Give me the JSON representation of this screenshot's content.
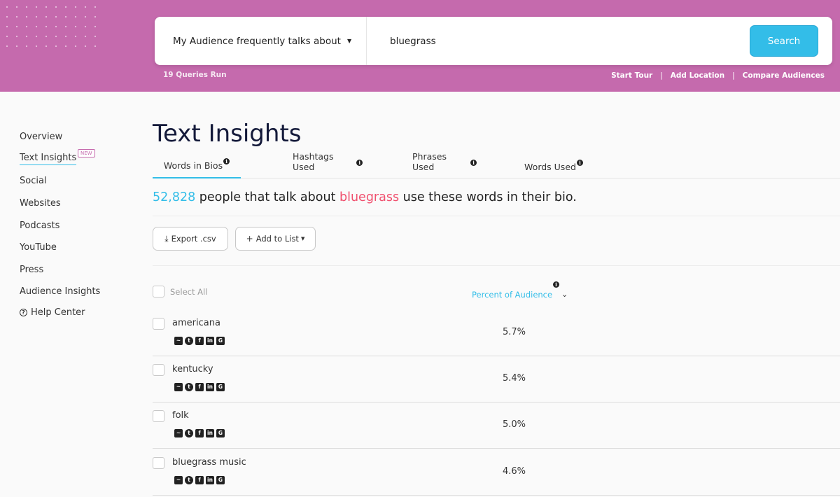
{
  "header": {
    "dropdown_label": "My Audience frequently talks about",
    "query": "bluegrass",
    "search_label": "Search",
    "queries_run": "19 Queries Run",
    "links": [
      "Start Tour",
      "Add Location",
      "Compare Audiences"
    ],
    "brand_color": "#c56aad",
    "accent_color": "#33bde8"
  },
  "sidebar": {
    "items": [
      {
        "label": "Overview"
      },
      {
        "label": "Text Insights",
        "badge": "NEW"
      },
      {
        "label": "Social"
      },
      {
        "label": "Websites"
      },
      {
        "label": "Podcasts"
      },
      {
        "label": "YouTube"
      },
      {
        "label": "Press"
      },
      {
        "label": "Audience Insights"
      }
    ],
    "help_label": "Help Center"
  },
  "main": {
    "title": "Text Insights",
    "tabs": [
      {
        "label": "Words in Bios"
      },
      {
        "label": "Hashtags Used"
      },
      {
        "label": "Phrases Used"
      },
      {
        "label": "Words Used"
      }
    ],
    "summary": {
      "count": "52,828",
      "before": " people that talk about ",
      "keyword": "bluegrass",
      "after": " use these words in their bio."
    },
    "export_label": "Export .csv",
    "add_to_list_label": "Add to List",
    "select_all_label": "Select All",
    "column_header": "Percent of Audience",
    "rows": [
      {
        "word": "americana",
        "percent": "5.7%"
      },
      {
        "word": "kentucky",
        "percent": "5.4%"
      },
      {
        "word": "folk",
        "percent": "5.0%"
      },
      {
        "word": "bluegrass music",
        "percent": "4.6%"
      }
    ],
    "row_icons": [
      "trend-icon",
      "twitter-icon",
      "facebook-icon",
      "linkedin-icon",
      "google-icon"
    ]
  }
}
